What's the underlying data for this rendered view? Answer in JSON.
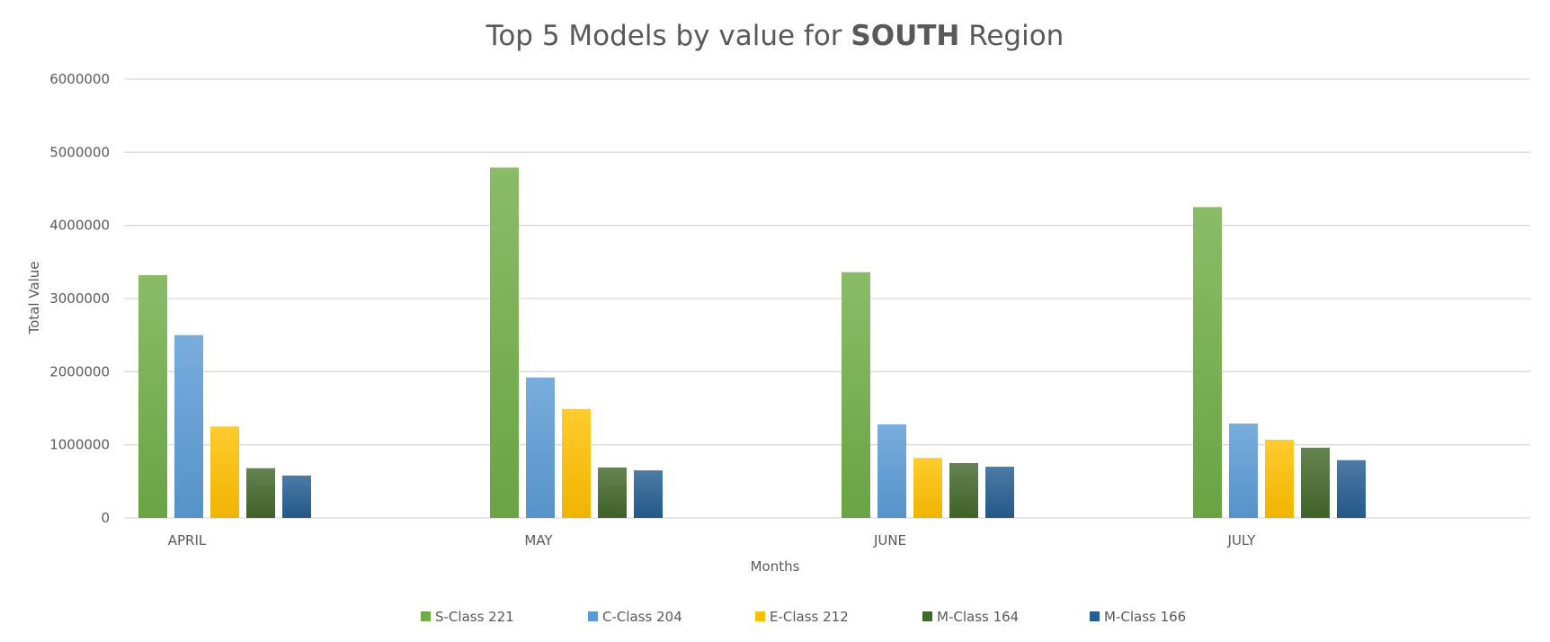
{
  "chart_data": {
    "type": "bar",
    "title": {
      "prefix": "Top 5 Models by value for ",
      "bold": "SOUTH",
      "suffix": " Region"
    },
    "xlabel": "Months",
    "ylabel": "Total Value",
    "categories": [
      "APRIL",
      "MAY",
      "JUNE",
      "JULY"
    ],
    "ylim": [
      0,
      6000000
    ],
    "yticks": [
      "0",
      "1000000",
      "2000000",
      "3000000",
      "4000000",
      "5000000",
      "6000000"
    ],
    "grid": true,
    "legend_position": "bottom",
    "series": [
      {
        "name": "S-Class 221",
        "color": "#70ad47",
        "values": [
          3320000,
          4790000,
          3360000,
          4250000
        ]
      },
      {
        "name": "C-Class 204",
        "color": "#5b9bd5",
        "values": [
          2500000,
          1920000,
          1280000,
          1290000
        ]
      },
      {
        "name": "E-Class 212",
        "color": "#ffc000",
        "values": [
          1250000,
          1490000,
          820000,
          1070000
        ]
      },
      {
        "name": "M-Class 164",
        "color": "#43682b",
        "values": [
          680000,
          690000,
          750000,
          960000
        ]
      },
      {
        "name": "M-Class 166",
        "color": "#255e91",
        "values": [
          580000,
          650000,
          700000,
          790000
        ]
      }
    ]
  }
}
